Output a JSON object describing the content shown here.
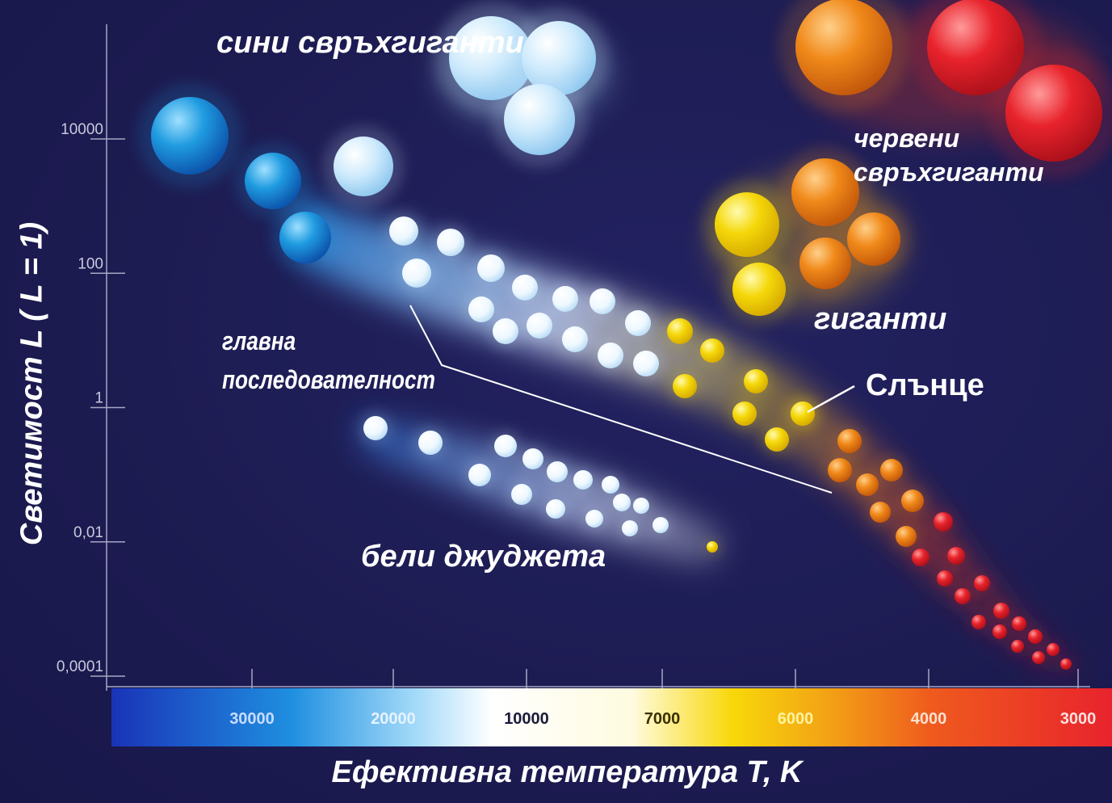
{
  "chart_data": {
    "type": "scatter",
    "title": "",
    "xlabel": "Ефективна температура T, K",
    "ylabel": "Светимост L ( L = 1)",
    "x_scale": "log-temperature, decreasing to the right",
    "y_scale": "log-luminosity",
    "xlim": [
      3000,
      30000
    ],
    "ylim": [
      0.0001,
      10000
    ],
    "x_ticks": [
      "30000",
      "20000",
      "10000",
      "7000",
      "6000",
      "4000",
      "3000"
    ],
    "y_ticks": [
      "10000",
      "100",
      "1",
      "0,01",
      "0,0001"
    ],
    "groups": [
      {
        "name": "сини свръхгиганти"
      },
      {
        "name": "червени свръхгиганти"
      },
      {
        "name": "гиганти"
      },
      {
        "name": "главна последователност"
      },
      {
        "name": "Слънце"
      },
      {
        "name": "бели джуджета"
      }
    ],
    "colors": {
      "background": "#1d1c52",
      "blue_star": "#1f9be0",
      "white_star": "#e8f6ff",
      "yellow_star": "#f5d80a",
      "orange_star": "#f0891a",
      "red_star": "#e8232c"
    }
  }
}
